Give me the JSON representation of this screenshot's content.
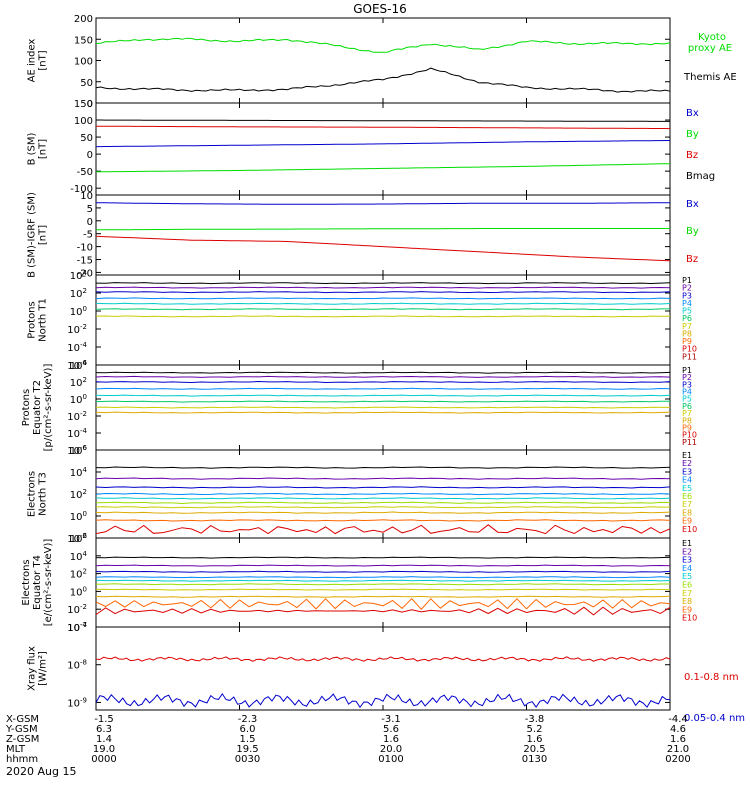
{
  "title": "GOES-16",
  "date_label": "2020 Aug 15",
  "colors": {
    "black": "#000000",
    "green": "#00dd00",
    "red": "#dd0000",
    "blue": "#0000cc",
    "p_colors": [
      "#000000",
      "#6600aa",
      "#0000cc",
      "#0088ff",
      "#00cccc",
      "#00cc66",
      "#cccc00",
      "#ddaa00",
      "#ff6600",
      "#dd0000",
      "#aa0000"
    ],
    "e_colors": [
      "#000000",
      "#6600aa",
      "#0000cc",
      "#0088ff",
      "#00cccc",
      "#99dd00",
      "#cccc00",
      "#ddaa00",
      "#ff6600",
      "#dd0000"
    ]
  },
  "x_ticks_hhmm": [
    "0000",
    "0030",
    "0100",
    "0130",
    "0200"
  ],
  "ephemeris": {
    "labels": [
      "X-GSM",
      "Y-GSM",
      "Z-GSM",
      "MLT",
      "hhmm"
    ],
    "rows": [
      [
        "-1.5",
        "-2.3",
        "-3.1",
        "-3.8",
        "-4.4"
      ],
      [
        "6.3",
        "6.0",
        "5.6",
        "5.2",
        "4.6"
      ],
      [
        "1.4",
        "1.5",
        "1.6",
        "1.6",
        "1.6"
      ],
      [
        "19.0",
        "19.5",
        "20.0",
        "20.5",
        "21.0"
      ],
      [
        "0000",
        "0030",
        "0100",
        "0130",
        "0200"
      ]
    ]
  },
  "chart_data": [
    {
      "type": "line",
      "id": "ae",
      "ylabel": [
        "AE index",
        "[nT]"
      ],
      "ylim": [
        0,
        200
      ],
      "yticks": [
        "0",
        "50",
        "100",
        "150",
        "200"
      ],
      "x": [
        0,
        10,
        20,
        30,
        40,
        50,
        60,
        70,
        80,
        90,
        100,
        110,
        120
      ],
      "series": [
        {
          "name": "Kyoto proxy AE",
          "color_key": "green",
          "values": [
            140,
            150,
            150,
            145,
            150,
            135,
            118,
            140,
            125,
            145,
            140,
            140,
            140
          ]
        },
        {
          "name": "Themis AE",
          "color_key": "black",
          "values": [
            36,
            33,
            30,
            30,
            32,
            43,
            55,
            80,
            50,
            36,
            33,
            28,
            28
          ]
        }
      ],
      "legend": [
        "Kyoto",
        "proxy AE",
        "Themis AE"
      ]
    },
    {
      "type": "line",
      "id": "bsm",
      "ylabel": [
        "B (SM)",
        "[nT]"
      ],
      "ylim": [
        -120,
        150
      ],
      "yticks": [
        "-100",
        "-50",
        "0",
        "50",
        "100",
        "150"
      ],
      "x": [
        0,
        30,
        60,
        90,
        120
      ],
      "series": [
        {
          "name": "Bx",
          "color_key": "blue",
          "values": [
            22,
            26,
            30,
            36,
            40
          ]
        },
        {
          "name": "By",
          "color_key": "green",
          "values": [
            -52,
            -48,
            -42,
            -36,
            -28
          ]
        },
        {
          "name": "Bz",
          "color_key": "red",
          "values": [
            82,
            80,
            79,
            77,
            75
          ]
        },
        {
          "name": "Bmag",
          "color_key": "black",
          "values": [
            100,
            99,
            98,
            97,
            96
          ]
        }
      ],
      "legend": [
        "Bx",
        "By",
        "Bz",
        "Bmag"
      ]
    },
    {
      "type": "line",
      "id": "bigrf",
      "ylabel": [
        "B (SM)-IGRF (SM)",
        "[nT]"
      ],
      "ylim": [
        -21,
        10
      ],
      "yticks": [
        "-20",
        "-15",
        "-10",
        "-5",
        "0",
        "5",
        "10"
      ],
      "x": [
        0,
        20,
        40,
        60,
        80,
        100,
        120
      ],
      "series": [
        {
          "name": "Bx",
          "color_key": "blue",
          "values": [
            7,
            6.6,
            6.4,
            6.5,
            6.8,
            6.8,
            7
          ]
        },
        {
          "name": "By",
          "color_key": "green",
          "values": [
            -3.5,
            -3.3,
            -3.2,
            -3.1,
            -3,
            -3,
            -3
          ]
        },
        {
          "name": "Bz",
          "color_key": "red",
          "values": [
            -6,
            -7.5,
            -8,
            -10,
            -12,
            -14,
            -15.5
          ]
        }
      ],
      "legend": [
        "Bx",
        "By",
        "Bz"
      ]
    },
    {
      "type": "line",
      "id": "pn",
      "log": true,
      "ylabel": [
        "Protons",
        "North T1"
      ],
      "ylim": [
        -6,
        4
      ],
      "yticks": [
        "10^-6",
        "10^-4",
        "10^-2",
        "10^0",
        "10^2",
        "10^4"
      ],
      "channels": [
        "P1",
        "P2",
        "P3",
        "P4",
        "P5",
        "P6",
        "P7",
        "P8",
        "P9",
        "P10",
        "P11"
      ],
      "levels": [
        3.1,
        2.6,
        2.1,
        1.4,
        0.8,
        0.2,
        -0.6,
        null,
        null,
        null,
        null
      ]
    },
    {
      "type": "line",
      "id": "pe",
      "log": true,
      "ylabel": [
        "Protons",
        "Equator T2",
        "[p/(cm²-s-sr-keV)]"
      ],
      "ylim": [
        -6,
        4
      ],
      "yticks": [
        "10^-6",
        "10^-4",
        "10^-2",
        "10^0",
        "10^2",
        "10^4"
      ],
      "channels": [
        "P1",
        "P2",
        "P3",
        "P4",
        "P5",
        "P6",
        "P7",
        "P8",
        "P9",
        "P10",
        "P11"
      ],
      "levels": [
        3.1,
        2.6,
        2.0,
        1.2,
        0.4,
        -0.3,
        -1.0,
        -1.6,
        null,
        null,
        null
      ]
    },
    {
      "type": "line",
      "id": "en",
      "log": true,
      "ylabel": [
        "Electrons",
        "North T3"
      ],
      "ylim": [
        -2,
        6
      ],
      "yticks": [
        "10^-2",
        "10^0",
        "10^2",
        "10^4",
        "10^6"
      ],
      "channels": [
        "E1",
        "E2",
        "E3",
        "E4",
        "E5",
        "E6",
        "E7",
        "E8",
        "E9",
        "E10"
      ],
      "levels": [
        4.4,
        3.4,
        2.6,
        2.0,
        1.6,
        1.2,
        0.8,
        0.3,
        -0.4,
        -1.6
      ]
    },
    {
      "type": "line",
      "id": "ee",
      "log": true,
      "ylabel": [
        "Electrons",
        "Equator T4",
        "[e/(cm²-s-sr-keV)]"
      ],
      "ylim": [
        -4,
        6
      ],
      "yticks": [
        "10^-4",
        "10^-2",
        "10^0",
        "10^2",
        "10^4",
        "10^6"
      ],
      "channels": [
        "E1",
        "E2",
        "E3",
        "E4",
        "E5",
        "E6",
        "E7",
        "E8",
        "E9",
        "E10"
      ],
      "levels": [
        3.8,
        2.9,
        2.2,
        1.6,
        1.2,
        0.8,
        0.2,
        -0.6,
        -1.4,
        -2.2
      ]
    },
    {
      "type": "line",
      "id": "xray",
      "log": true,
      "ylabel": [
        "Xray flux",
        "[W/m²]"
      ],
      "ylim": [
        -9.2,
        -7
      ],
      "yticks": [
        "10^-9",
        "10^-8",
        "10^-7"
      ],
      "series": [
        {
          "name": "0.1-0.8 nm",
          "color_key": "red",
          "level": -7.85
        },
        {
          "name": "0.05-0.4 nm",
          "color_key": "blue",
          "level": -8.95
        }
      ],
      "legend": [
        "0.1-0.8 nm",
        "0.05-0.4 nm"
      ]
    }
  ]
}
